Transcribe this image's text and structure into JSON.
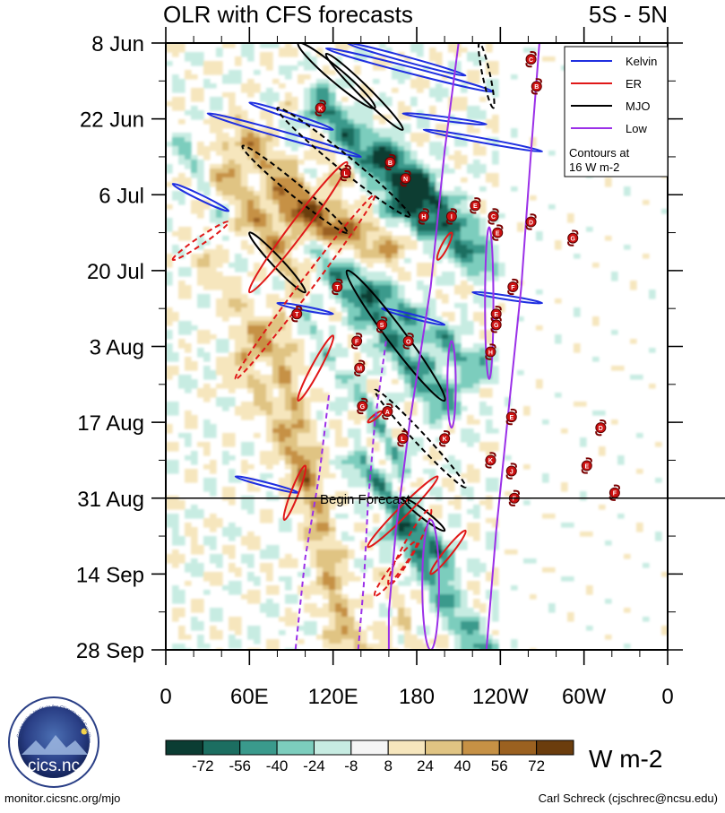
{
  "chart_data": {
    "type": "heatmap",
    "title": "OLR with CFS forecasts",
    "region": "5S - 5N",
    "y_ticks": [
      "8 Jun",
      "22 Jun",
      "6 Jul",
      "20 Jul",
      "3 Aug",
      "17 Aug",
      "31 Aug",
      "14 Sep",
      "28 Sep"
    ],
    "x_ticks": [
      {
        "lon": 0,
        "label": "0"
      },
      {
        "lon": 60,
        "label": "60E"
      },
      {
        "lon": 120,
        "label": "120E"
      },
      {
        "lon": 180,
        "label": "180"
      },
      {
        "lon": 240,
        "label": "120W"
      },
      {
        "lon": 300,
        "label": "60W"
      },
      {
        "lon": 360,
        "label": "0"
      }
    ],
    "xlim": [
      0,
      360
    ],
    "ylim_days": [
      0,
      112
    ],
    "forecast_start_day": 84,
    "forecast_label": "Begin Forecast",
    "legend": {
      "entries": [
        {
          "name": "Kelvin",
          "color": "#1f2fe0"
        },
        {
          "name": "ER",
          "color": "#e01818"
        },
        {
          "name": "MJO",
          "color": "#000000"
        },
        {
          "name": "Low",
          "color": "#9b30e8"
        }
      ],
      "note_line1": "Contours at",
      "note_line2": "16 W m-2"
    },
    "colorbar": {
      "unit": "W m-2",
      "levels": [
        "-72",
        "-56",
        "-40",
        "-24",
        "-8",
        "8",
        "24",
        "40",
        "56",
        "72"
      ],
      "colors": [
        "#0b3d33",
        "#1c6e61",
        "#3a9a8c",
        "#7ccdbd",
        "#c7ece2",
        "#f5f5f5",
        "#f6e6bd",
        "#e0c483",
        "#c69145",
        "#9b6120",
        "#6b3d0d"
      ]
    },
    "contours": [
      {
        "wave": "kelvin",
        "sign": "neg",
        "lon0": 30,
        "lon1": 140,
        "day0": 13,
        "day1": 21,
        "width": 2.5
      },
      {
        "wave": "kelvin",
        "sign": "neg",
        "lon0": 5,
        "lon1": 45,
        "day0": 26,
        "day1": 31,
        "width": 2.0
      },
      {
        "wave": "kelvin",
        "sign": "neg",
        "lon0": 60,
        "lon1": 120,
        "day0": 11,
        "day1": 16,
        "width": 2.0
      },
      {
        "wave": "kelvin",
        "sign": "neg",
        "lon0": 115,
        "lon1": 235,
        "day0": 1,
        "day1": 9,
        "width": 2.5
      },
      {
        "wave": "kelvin",
        "sign": "neg",
        "lon0": 130,
        "lon1": 215,
        "day0": 0,
        "day1": 6,
        "width": 2.0
      },
      {
        "wave": "kelvin",
        "sign": "neg",
        "lon0": 185,
        "lon1": 270,
        "day0": 16,
        "day1": 20,
        "width": 1.8
      },
      {
        "wave": "kelvin",
        "sign": "neg",
        "lon0": 80,
        "lon1": 120,
        "day0": 48,
        "day1": 50,
        "width": 0.9
      },
      {
        "wave": "kelvin",
        "sign": "neg",
        "lon0": 155,
        "lon1": 200,
        "day0": 49,
        "day1": 52,
        "width": 0.8
      },
      {
        "wave": "kelvin",
        "sign": "neg",
        "lon0": 220,
        "lon1": 270,
        "day0": 46,
        "day1": 48,
        "width": 0.9
      },
      {
        "wave": "kelvin",
        "sign": "neg",
        "lon0": 50,
        "lon1": 95,
        "day0": 80,
        "day1": 83,
        "width": 0.8
      },
      {
        "wave": "kelvin",
        "sign": "neg",
        "lon0": 170,
        "lon1": 230,
        "day0": 13,
        "day1": 15,
        "width": 1.0
      },
      {
        "wave": "mjo",
        "sign": "neg",
        "lon0": 95,
        "lon1": 150,
        "day0": 0,
        "day1": 12,
        "width": 5.5
      },
      {
        "wave": "mjo",
        "sign": "neg",
        "lon0": 115,
        "lon1": 170,
        "day0": 2,
        "day1": 16,
        "width": 4.5
      },
      {
        "wave": "mjo",
        "sign": "pos",
        "lon0": 80,
        "lon1": 175,
        "day0": 12,
        "day1": 32,
        "width": 6.0
      },
      {
        "wave": "mjo",
        "sign": "pos",
        "lon0": 55,
        "lon1": 130,
        "day0": 19,
        "day1": 35,
        "width": 5.0
      },
      {
        "wave": "mjo",
        "sign": "neg",
        "lon0": 60,
        "lon1": 100,
        "day0": 35,
        "day1": 46,
        "width": 4.0
      },
      {
        "wave": "mjo",
        "sign": "neg",
        "lon0": 130,
        "lon1": 200,
        "day0": 42,
        "day1": 66,
        "width": 7.0
      },
      {
        "wave": "mjo",
        "sign": "pos",
        "lon0": 150,
        "lon1": 215,
        "day0": 64,
        "day1": 82,
        "width": 4.5
      },
      {
        "wave": "mjo",
        "sign": "pos",
        "lon0": 225,
        "lon1": 235,
        "day0": 0,
        "day1": 12,
        "width": 3.0
      },
      {
        "wave": "mjo",
        "sign": "neg",
        "lon0": 170,
        "lon1": 200,
        "day0": 84,
        "day1": 90,
        "width": 3.0
      },
      {
        "wave": "er",
        "sign": "neg",
        "lon0": 130,
        "lon1": 60,
        "day0": 22,
        "day1": 46,
        "width": 6.0
      },
      {
        "wave": "er",
        "sign": "pos",
        "lon0": 150,
        "lon1": 50,
        "day0": 28,
        "day1": 62,
        "width": 5.0
      },
      {
        "wave": "er",
        "sign": "pos",
        "lon0": 45,
        "lon1": 5,
        "day0": 33,
        "day1": 40,
        "width": 3.0
      },
      {
        "wave": "er",
        "sign": "neg",
        "lon0": 120,
        "lon1": 95,
        "day0": 54,
        "day1": 66,
        "width": 3.5
      },
      {
        "wave": "er",
        "sign": "neg",
        "lon0": 100,
        "lon1": 85,
        "day0": 78,
        "day1": 88,
        "width": 3.0
      },
      {
        "wave": "er",
        "sign": "neg",
        "lon0": 205,
        "lon1": 195,
        "day0": 35,
        "day1": 40,
        "width": 2.5
      },
      {
        "wave": "er",
        "sign": "neg",
        "lon0": 195,
        "lon1": 145,
        "day0": 80,
        "day1": 93,
        "width": 4.0
      },
      {
        "wave": "er",
        "sign": "neg",
        "lon0": 215,
        "lon1": 190,
        "day0": 90,
        "day1": 98,
        "width": 3.0
      },
      {
        "wave": "er",
        "sign": "pos",
        "lon0": 190,
        "lon1": 160,
        "day0": 86,
        "day1": 100,
        "width": 5.0
      },
      {
        "wave": "er",
        "sign": "pos",
        "lon0": 180,
        "lon1": 150,
        "day0": 92,
        "day1": 102,
        "width": 4.0
      },
      {
        "wave": "er",
        "sign": "neg",
        "lon0": 155,
        "lon1": 145,
        "day0": 68,
        "day1": 70,
        "width": 1.5
      }
    ],
    "low_lines": [
      {
        "sign": "neg",
        "pts": [
          [
            210,
            0
          ],
          [
            200,
            20
          ],
          [
            190,
            45
          ],
          [
            175,
            70
          ],
          [
            165,
            90
          ],
          [
            160,
            105
          ],
          [
            160,
            112
          ]
        ]
      },
      {
        "sign": "neg",
        "pts": [
          [
            268,
            0
          ],
          [
            262,
            20
          ],
          [
            255,
            45
          ],
          [
            245,
            70
          ],
          [
            237,
            90
          ],
          [
            230,
            112
          ]
        ]
      },
      {
        "sign": "pos",
        "pts": [
          [
            158,
            55
          ],
          [
            150,
            70
          ],
          [
            145,
            85
          ],
          [
            142,
            100
          ],
          [
            138,
            112
          ]
        ]
      },
      {
        "sign": "pos",
        "pts": [
          [
            117,
            65
          ],
          [
            110,
            80
          ],
          [
            100,
            95
          ],
          [
            93,
            112
          ]
        ]
      }
    ],
    "low_loops": [
      {
        "sign": "neg",
        "lon": 205,
        "day": 63,
        "rx": 3,
        "ry": 8
      },
      {
        "sign": "neg",
        "lon": 232,
        "day": 48,
        "rx": 3,
        "ry": 14
      },
      {
        "sign": "neg",
        "lon": 190,
        "day": 100,
        "rx": 6,
        "ry": 12
      }
    ],
    "storms": [
      {
        "lon": 262,
        "day": 3,
        "letter": "C"
      },
      {
        "lon": 266,
        "day": 8,
        "letter": "B"
      },
      {
        "lon": 111,
        "day": 12,
        "letter": "K"
      },
      {
        "lon": 161,
        "day": 22,
        "letter": "B"
      },
      {
        "lon": 129,
        "day": 24,
        "letter": "L"
      },
      {
        "lon": 172,
        "day": 25,
        "letter": "N"
      },
      {
        "lon": 185,
        "day": 32,
        "letter": "H"
      },
      {
        "lon": 205,
        "day": 32,
        "letter": "I"
      },
      {
        "lon": 222,
        "day": 30,
        "letter": "E"
      },
      {
        "lon": 235,
        "day": 32,
        "letter": "C"
      },
      {
        "lon": 262,
        "day": 33,
        "letter": "D"
      },
      {
        "lon": 238,
        "day": 35,
        "letter": "E"
      },
      {
        "lon": 292,
        "day": 36,
        "letter": "G"
      },
      {
        "lon": 123,
        "day": 45,
        "letter": "T"
      },
      {
        "lon": 249,
        "day": 45,
        "letter": "F"
      },
      {
        "lon": 94,
        "day": 50,
        "letter": "T"
      },
      {
        "lon": 237,
        "day": 50,
        "letter": "E"
      },
      {
        "lon": 155,
        "day": 52,
        "letter": "S"
      },
      {
        "lon": 237,
        "day": 52,
        "letter": "G"
      },
      {
        "lon": 137,
        "day": 55,
        "letter": "F"
      },
      {
        "lon": 174,
        "day": 55,
        "letter": "O"
      },
      {
        "lon": 233,
        "day": 57,
        "letter": "H"
      },
      {
        "lon": 139,
        "day": 60,
        "letter": "M"
      },
      {
        "lon": 141,
        "day": 67,
        "letter": "G"
      },
      {
        "lon": 159,
        "day": 68,
        "letter": "A"
      },
      {
        "lon": 248,
        "day": 69,
        "letter": "E"
      },
      {
        "lon": 312,
        "day": 71,
        "letter": "D"
      },
      {
        "lon": 170,
        "day": 73,
        "letter": "L"
      },
      {
        "lon": 200,
        "day": 73,
        "letter": "K"
      },
      {
        "lon": 233,
        "day": 77,
        "letter": "K"
      },
      {
        "lon": 248,
        "day": 79,
        "letter": "J"
      },
      {
        "lon": 302,
        "day": 78,
        "letter": "E"
      },
      {
        "lon": 322,
        "day": 83,
        "letter": "F"
      },
      {
        "lon": 250,
        "day": 84,
        "letter": "F"
      }
    ]
  },
  "footer": {
    "url": "monitor.cicsnc.org/mjo",
    "credit": "Carl Schreck (cjschrec@ncsu.edu)"
  },
  "logo": {
    "name": "cics.nc",
    "ring_text": "Cooperative Institute for Climate and Satellites"
  }
}
